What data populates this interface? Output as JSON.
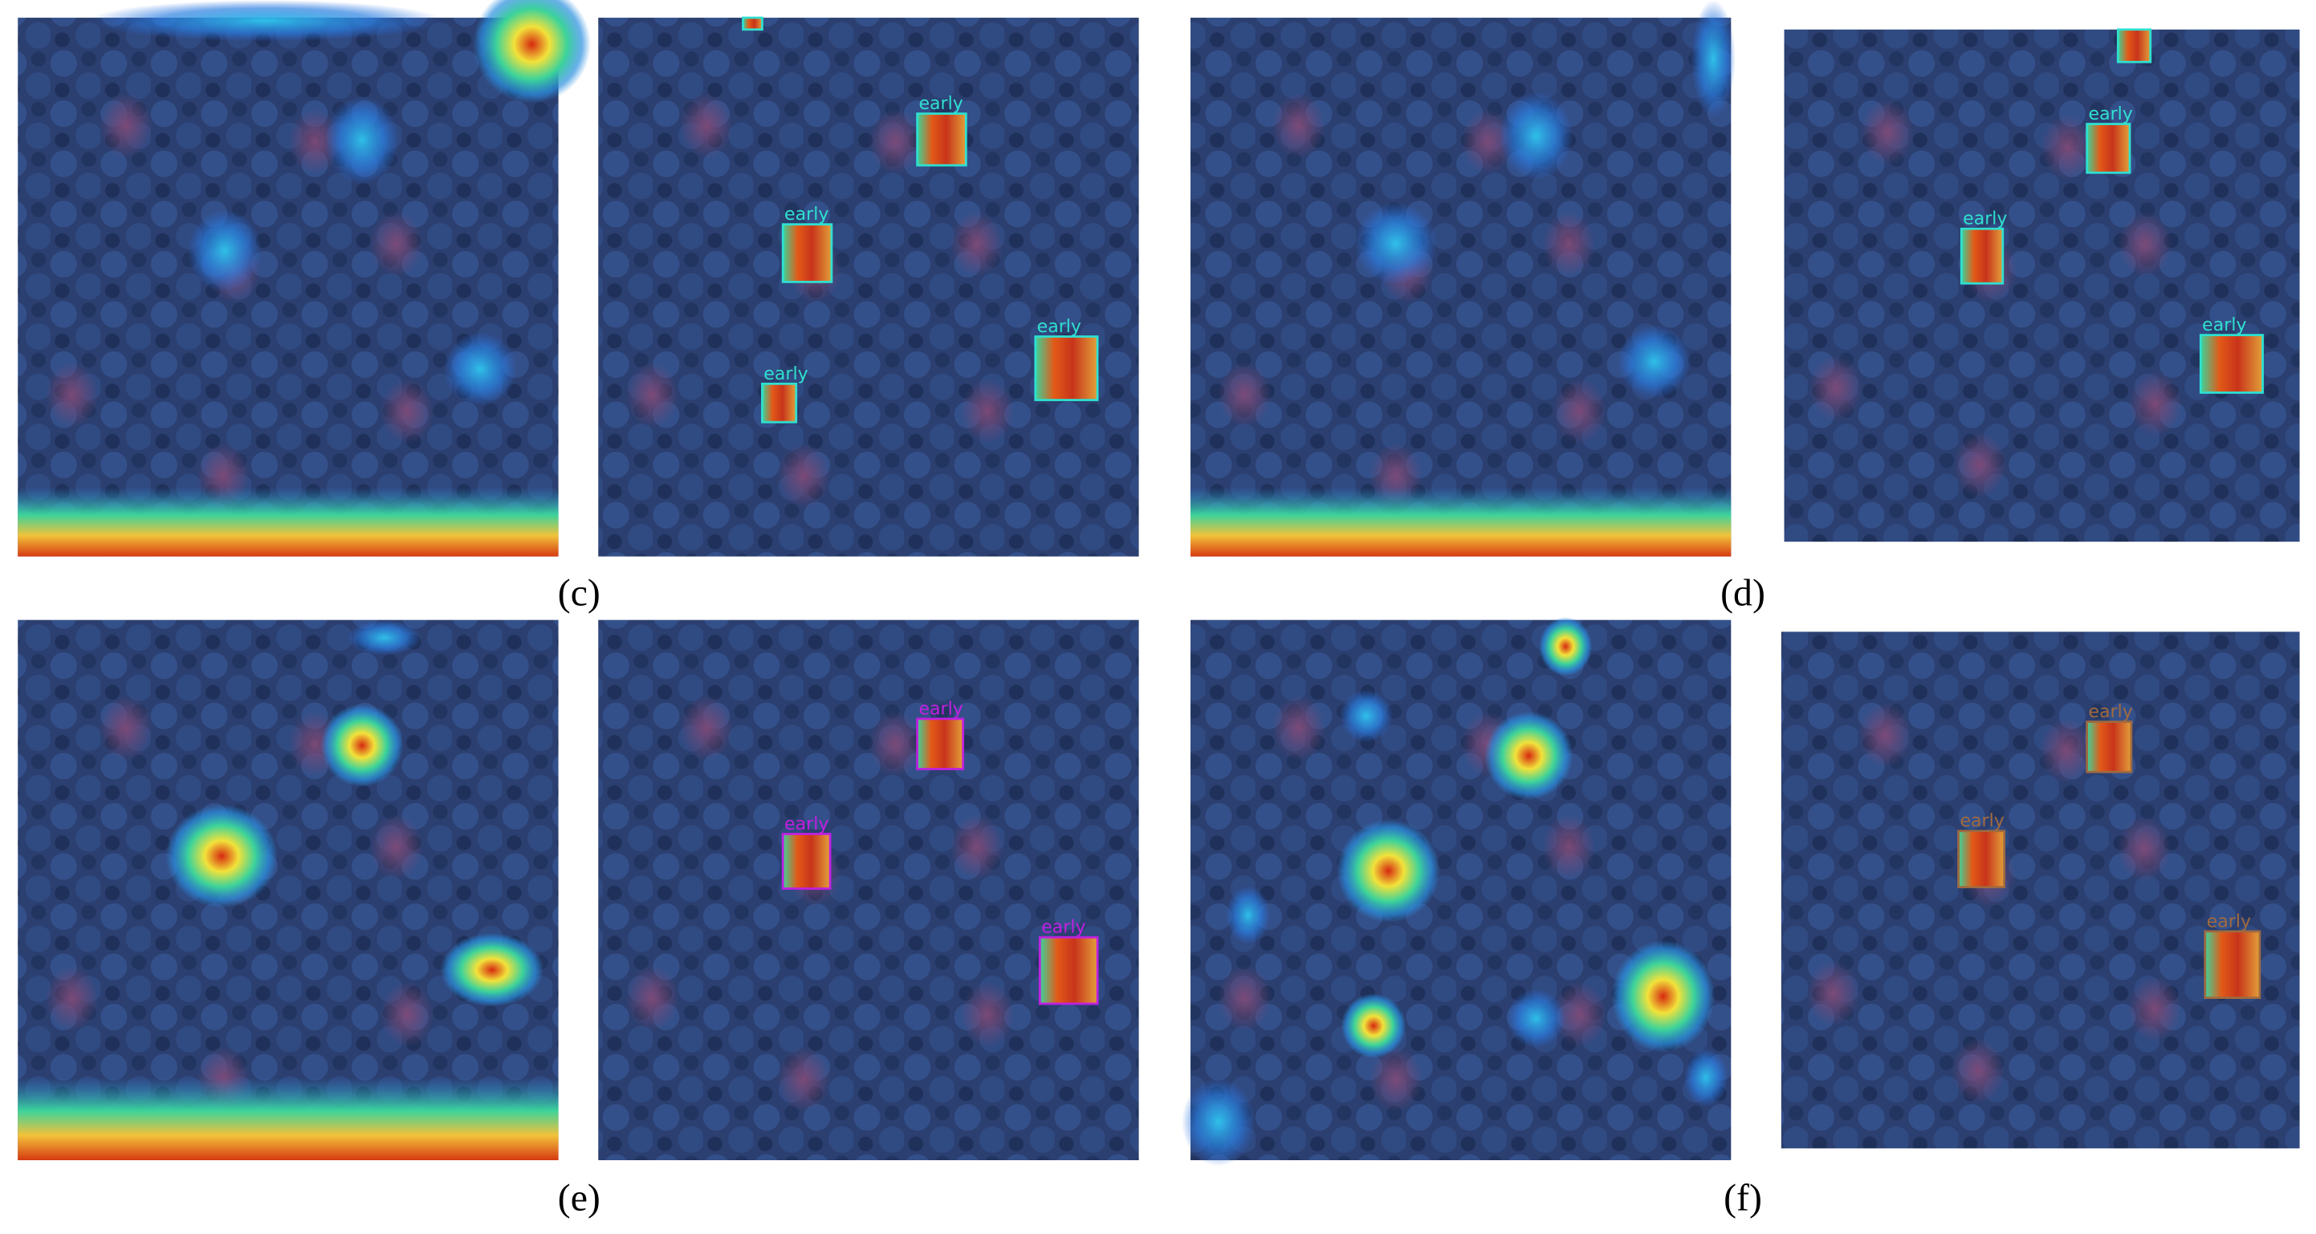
{
  "captions": [
    "(c)",
    "(d)",
    "(e)",
    "(f)"
  ],
  "detections": [
    [
      "early",
      "early",
      "early",
      "early"
    ],
    [
      "early",
      "early",
      "early"
    ],
    [
      "early",
      "early",
      "early"
    ],
    [
      "early",
      "early",
      "early"
    ]
  ]
}
